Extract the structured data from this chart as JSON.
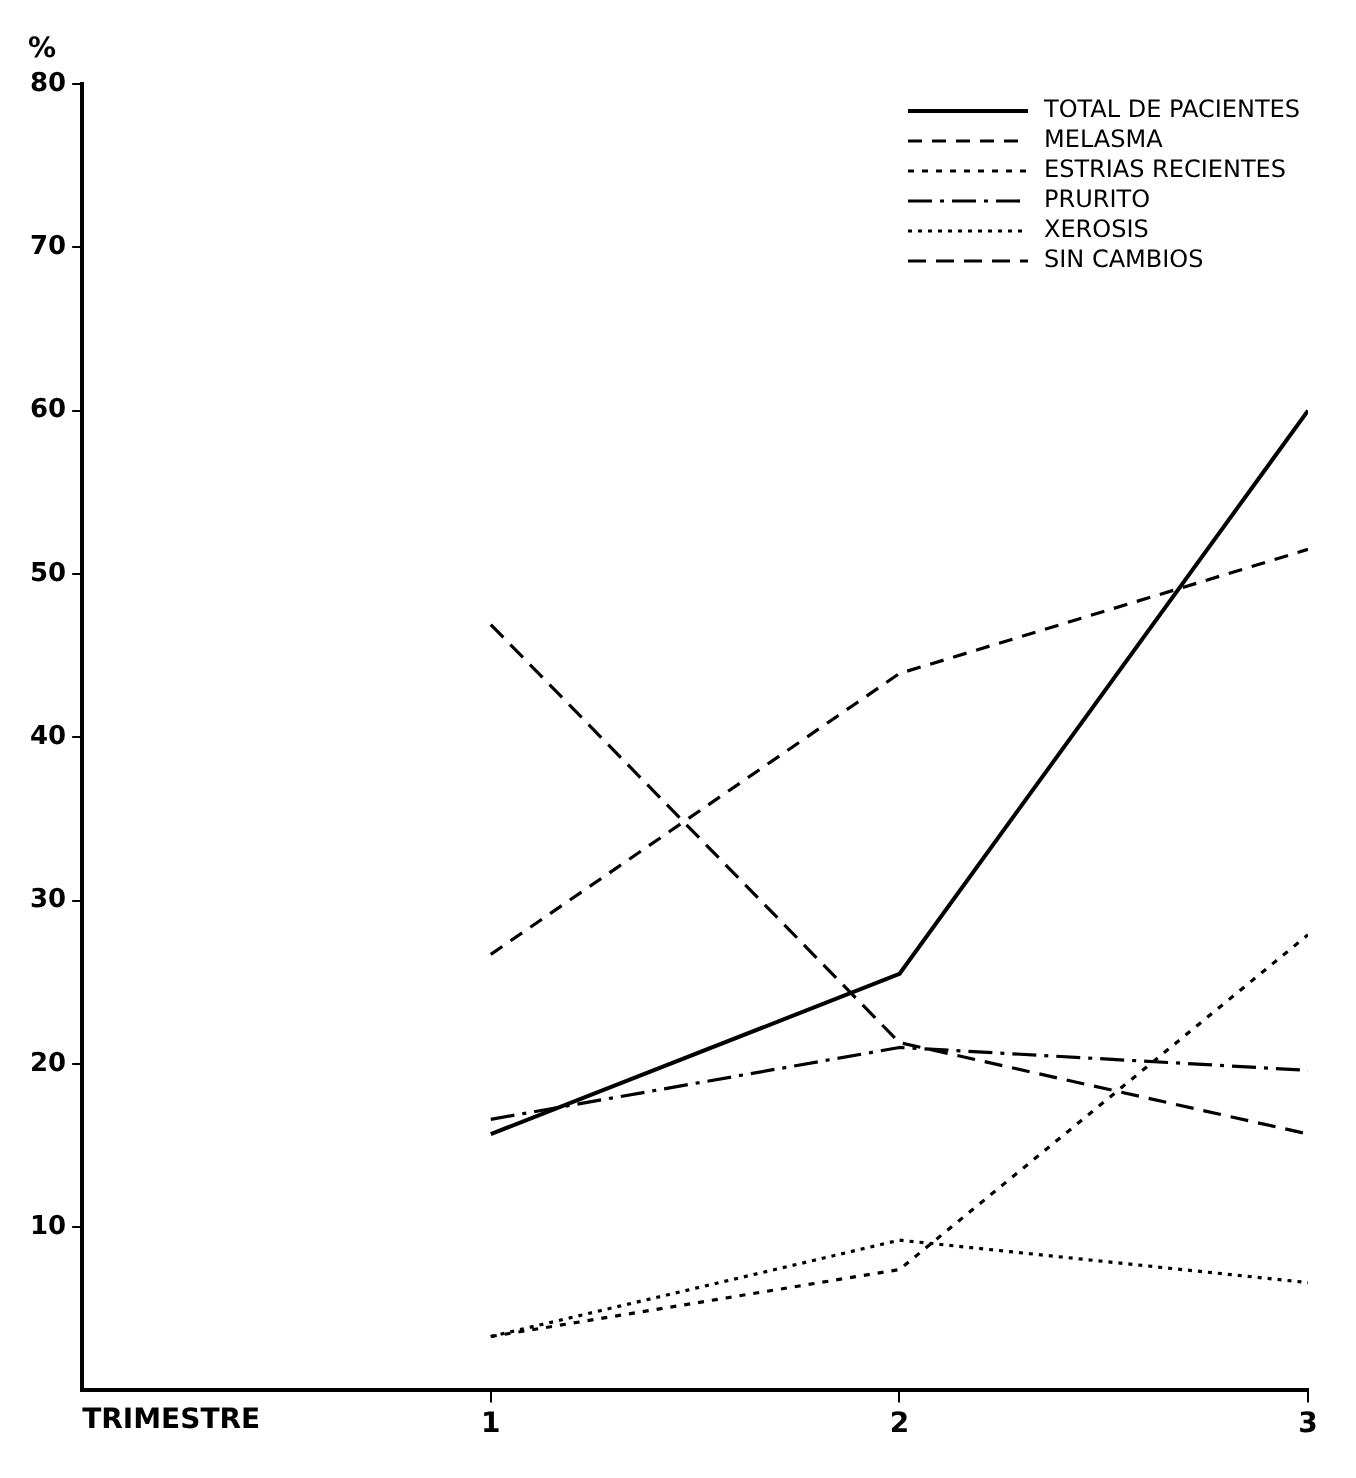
{
  "chart_data": {
    "type": "line",
    "xlabel": "TRIMESTRE",
    "ylabel": "%",
    "x": [
      1,
      2,
      3
    ],
    "xlim": [
      0,
      3
    ],
    "xticks": [
      1,
      2,
      3
    ],
    "ylim": [
      0,
      80
    ],
    "yticks": [
      10,
      20,
      30,
      40,
      50,
      60,
      70,
      80
    ],
    "grid": false,
    "legend": "top right",
    "marker": "none",
    "series": [
      {
        "name": "TOTAL DE PACIENTES",
        "color": "#000000",
        "line_style": "solid",
        "values": [
          15.7,
          25.5,
          60
        ]
      },
      {
        "name": "MELASMA",
        "color": "#000000",
        "line_style": "dashed",
        "values": [
          26.7,
          43.9,
          51.5
        ]
      },
      {
        "name": "ESTRIAS RECIENTES",
        "color": "#000000",
        "line_style": "dashed",
        "values": [
          3.3,
          7.4,
          27.9
        ]
      },
      {
        "name": "PRURITO",
        "color": "#000000",
        "line_style": "dashed",
        "values": [
          16.6,
          21,
          19.6
        ]
      },
      {
        "name": "XEROSIS",
        "color": "#000000",
        "line_style": "dotted",
        "values": [
          3.3,
          9.2,
          6.6
        ]
      },
      {
        "name": "SIN CAMBIOS",
        "color": "#000000",
        "line_style": "dashed",
        "values": [
          46.9,
          21.3,
          15.7
        ]
      }
    ]
  }
}
